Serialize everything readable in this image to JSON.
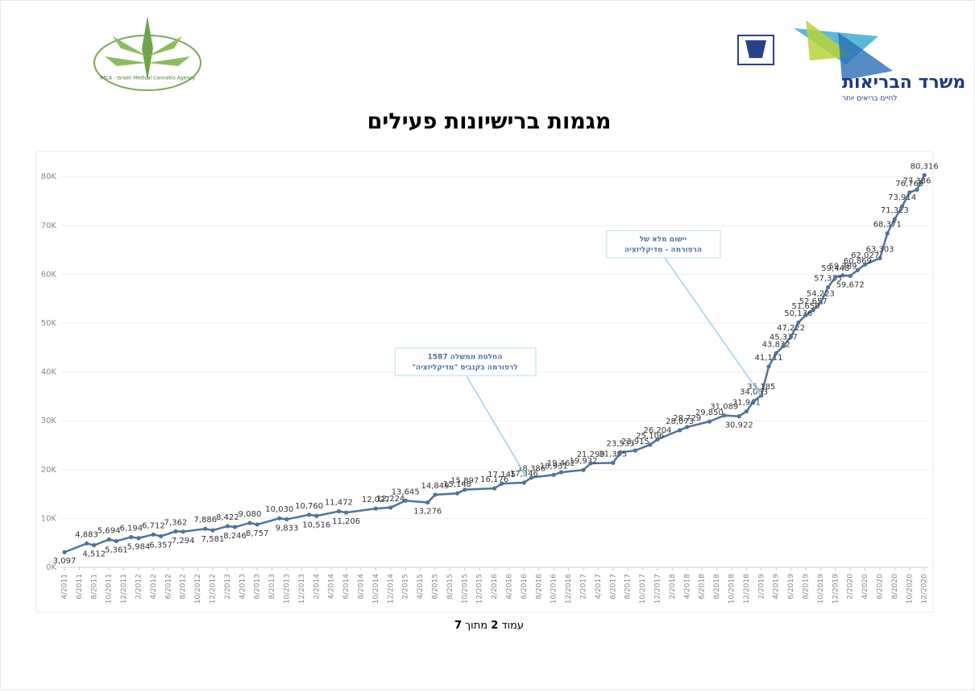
{
  "header": {
    "ministry": "משרד הבריאות",
    "slogan": "לחיים בריאים יותר",
    "agency": "IMCA - Israeli Medical Cannabis Agency"
  },
  "title": "מגמות ברישיונות פעילים",
  "chart_data": {
    "type": "line",
    "x": [
      "4/2011",
      "7/2011",
      "8/2011",
      "10/2011",
      "11/2011",
      "1/2012",
      "2/2012",
      "4/2012",
      "5/2012",
      "7/2012",
      "8/2012",
      "11/2012",
      "12/2012",
      "2/2013",
      "3/2013",
      "5/2013",
      "6/2013",
      "9/2013",
      "10/2013",
      "1/2014",
      "2/2014",
      "5/2014",
      "6/2014",
      "10/2014",
      "12/2014",
      "2/2015",
      "5/2015",
      "6/2015",
      "9/2015",
      "10/2015",
      "2/2016",
      "3/2016",
      "6/2016",
      "7/2016",
      "10/2016",
      "11/2016",
      "2/2017",
      "3/2017",
      "6/2017",
      "7/2017",
      "9/2017",
      "11/2017",
      "12/2017",
      "3/2018",
      "4/2018",
      "7/2018",
      "9/2018",
      "11/2018",
      "12/2018",
      "1/2019",
      "2/2019",
      "3/2019",
      "4/2019",
      "5/2019",
      "6/2019",
      "7/2019",
      "8/2019",
      "9/2019",
      "10/2019",
      "11/2019",
      "12/2019",
      "1/2020",
      "2/2020",
      "3/2020",
      "4/2020",
      "6/2020",
      "7/2020",
      "8/2020",
      "9/2020",
      "10/2020",
      "11/2020",
      "12/2020"
    ],
    "series": [
      {
        "name": "רישיונות פעילים",
        "color": "#4f739d",
        "values": [
          3097,
          4883,
          4512,
          5694,
          5361,
          6194,
          5984,
          6712,
          6357,
          7362,
          7294,
          7886,
          7581,
          8422,
          8246,
          9080,
          8757,
          10030,
          9833,
          10760,
          10516,
          11472,
          11206,
          12027,
          12224,
          13645,
          13276,
          14849,
          15148,
          15897,
          16176,
          17145,
          17346,
          18386,
          18931,
          19462,
          19932,
          21299,
          21395,
          23533,
          23915,
          25106,
          26204,
          28073,
          28729,
          29850,
          31089,
          30922,
          31941,
          34063,
          35185,
          41111,
          43832,
          45337,
          47222,
          50136,
          51650,
          52657,
          54223,
          57333,
          59448,
          59789,
          59672,
          60869,
          62027,
          63303,
          68371,
          71323,
          73914,
          76769,
          77336,
          80316
        ],
        "value_labels": [
          "3,097",
          "4,883",
          "4,512",
          "5,694",
          "5,361",
          "6,194",
          "5,984",
          "6,712",
          "6,357",
          "7,362",
          "7,294",
          "7,886",
          "7,581",
          "8,422",
          "8,246",
          "9,080",
          "8,757",
          "10,030",
          "9,833",
          "10,760",
          "10,516",
          "11,472",
          "11,206",
          "12,027",
          "12,224",
          "13,645",
          "13,276",
          "14,849",
          "15,148",
          "15,897",
          "16,176",
          "17,145",
          "17,346",
          "18,386",
          "18,931",
          "19,462",
          "19,932",
          "21,299",
          "21,395",
          "23,533",
          "23,915",
          "25,106",
          "26,204",
          "28,073",
          "28,729",
          "29,850",
          "31,089",
          "30,922",
          "31,941",
          "34,063",
          "35,185",
          "41,111",
          "43,832",
          "45,337",
          "47,222",
          "50,136",
          "51,650",
          "52,657",
          "54,223",
          "57,333",
          "59,448",
          "59,789",
          "59,672",
          "60,869",
          "62,027",
          "63,303",
          "68,371",
          "71,323",
          "73,914",
          "76,769",
          "77,336",
          "80,316"
        ]
      }
    ],
    "xticks": [
      "4/2011",
      "6/2011",
      "8/2011",
      "10/2011",
      "12/2011",
      "2/2012",
      "4/2012",
      "6/2012",
      "8/2012",
      "10/2012",
      "12/2012",
      "2/2013",
      "4/2013",
      "6/2013",
      "8/2013",
      "10/2013",
      "12/2013",
      "2/2014",
      "4/2014",
      "6/2014",
      "8/2014",
      "10/2014",
      "12/2014",
      "2/2015",
      "4/2015",
      "6/2015",
      "8/2015",
      "10/2015",
      "12/2015",
      "2/2016",
      "4/2016",
      "6/2016",
      "8/2016",
      "10/2016",
      "12/2016",
      "2/2017",
      "4/2017",
      "6/2017",
      "8/2017",
      "10/2017",
      "12/2017",
      "2/2018",
      "4/2018",
      "6/2018",
      "8/2018",
      "10/2018",
      "12/2018",
      "2/2019",
      "4/2019",
      "6/2019",
      "8/2019",
      "10/2019",
      "12/2019",
      "2/2020",
      "4/2020",
      "6/2020",
      "8/2020",
      "10/2020",
      "12/2020"
    ],
    "ylim": [
      0,
      84000
    ],
    "yticks": [
      {
        "value": 0,
        "label": "0K"
      },
      {
        "value": 10000,
        "label": "10K"
      },
      {
        "value": 20000,
        "label": "20K"
      },
      {
        "value": 30000,
        "label": "30K"
      },
      {
        "value": 40000,
        "label": "40K"
      },
      {
        "value": 50000,
        "label": "50K"
      },
      {
        "value": 60000,
        "label": "60K"
      },
      {
        "value": 70000,
        "label": "70K"
      },
      {
        "value": 80000,
        "label": "80K"
      }
    ],
    "grid": true,
    "annotations": [
      {
        "lines": [
          "החלטת ממשלה 1587",
          "לרפורמה  בקנביס \"מדיקליזציה\""
        ]
      },
      {
        "lines": [
          "יישום מלא של",
          "הרפורמה - מדיקליזציה"
        ]
      }
    ]
  },
  "footer": {
    "word": "עמוד",
    "page": "2",
    "of": "מתוך",
    "total": "7"
  }
}
